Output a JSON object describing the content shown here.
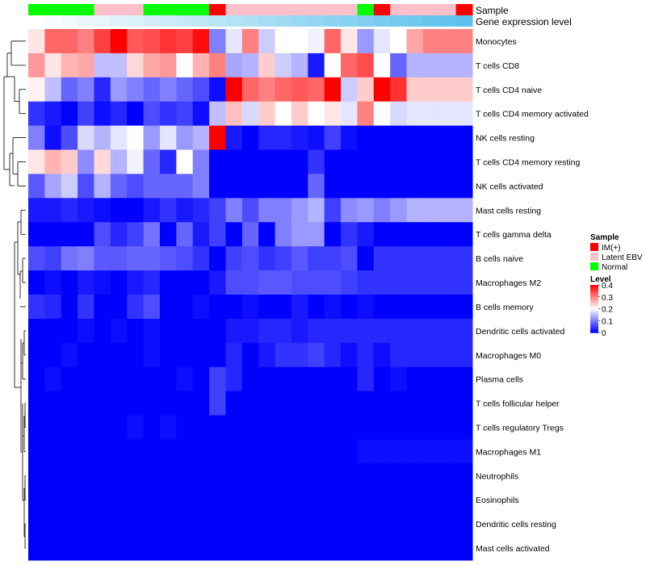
{
  "chart_data": {
    "type": "heatmap",
    "title": "",
    "annotation_tracks": [
      "Sample",
      "Gene expression level"
    ],
    "sample_groups": [
      "Normal",
      "Normal",
      "Normal",
      "Normal",
      "Latent EBV",
      "Latent EBV",
      "Latent EBV",
      "Normal",
      "Normal",
      "Normal",
      "Normal",
      "IM(+)",
      "Latent EBV",
      "Latent EBV",
      "Latent EBV",
      "Latent EBV",
      "Latent EBV",
      "Latent EBV",
      "Latent EBV",
      "Latent EBV",
      "Normal",
      "IM(+)",
      "Latent EBV",
      "Latent EBV",
      "Latent EBV",
      "Latent EBV",
      "IM(+)"
    ],
    "group_colors": {
      "IM(+)": "#ff0000",
      "Latent EBV": "#ffc0cb",
      "Normal": "#00ff00"
    },
    "gene_expression_level": [
      0.0,
      0.04,
      0.08,
      0.12,
      0.15,
      0.19,
      0.23,
      0.27,
      0.31,
      0.35,
      0.38,
      0.42,
      0.46,
      0.5,
      0.54,
      0.58,
      0.62,
      0.65,
      0.69,
      0.73,
      0.77,
      0.81,
      0.85,
      0.88,
      0.92,
      0.96,
      1.0
    ],
    "cell_types": [
      "Monocytes",
      "T cells CD8",
      "T cells CD4 naive",
      "T cells CD4 memory activated",
      "NK cells resting",
      "T cells CD4 memory resting",
      "NK cells activated",
      "Mast cells resting",
      "T cells gamma delta",
      "B cells naive",
      "Macrophages M2",
      "B cells memory",
      "Dendritic cells activated",
      "Macrophages M0",
      "Plasma cells",
      "T cells follicular helper",
      "T cells regulatory  Tregs",
      "Macrophages M1",
      "Neutrophils",
      "Eosinophils",
      "Dendritic cells resting",
      "Mast cells activated"
    ],
    "values": [
      [
        0.22,
        0.32,
        0.32,
        0.3,
        0.35,
        0.4,
        0.33,
        0.34,
        0.36,
        0.35,
        0.39,
        0.1,
        0.18,
        0.3,
        0.16,
        0.2,
        0.2,
        0.19,
        0.32,
        0.22,
        0.12,
        0.18,
        0.2,
        0.27,
        0.3,
        0.3,
        0.3
      ],
      [
        0.28,
        0.22,
        0.26,
        0.27,
        0.15,
        0.15,
        0.23,
        0.27,
        0.28,
        0.2,
        0.26,
        0.3,
        0.13,
        0.14,
        0.24,
        0.16,
        0.14,
        0.02,
        0.2,
        0.32,
        0.34,
        0.2,
        0.08,
        0.14,
        0.14,
        0.14,
        0.14
      ],
      [
        0.21,
        0.15,
        0.08,
        0.1,
        0.03,
        0.12,
        0.1,
        0.08,
        0.1,
        0.08,
        0.06,
        0.01,
        0.4,
        0.32,
        0.3,
        0.32,
        0.33,
        0.32,
        0.4,
        0.16,
        0.24,
        0.4,
        0.36,
        0.24,
        0.24,
        0.24,
        0.24
      ],
      [
        0.04,
        0.02,
        0.0,
        0.05,
        0.01,
        0.03,
        0.0,
        0.06,
        0.04,
        0.05,
        0.01,
        0.15,
        0.25,
        0.17,
        0.24,
        0.2,
        0.24,
        0.2,
        0.22,
        0.18,
        0.3,
        0.2,
        0.17,
        0.18,
        0.18,
        0.18,
        0.18
      ],
      [
        0.1,
        0.01,
        0.06,
        0.17,
        0.14,
        0.18,
        0.2,
        0.12,
        0.18,
        0.12,
        0.14,
        0.4,
        0.02,
        0.0,
        0.03,
        0.03,
        0.02,
        0.01,
        0.05,
        0.01,
        0.0,
        0.0,
        0.0,
        0.0,
        0.0,
        0.0,
        0.0
      ],
      [
        0.22,
        0.26,
        0.24,
        0.11,
        0.23,
        0.14,
        0.19,
        0.08,
        0.03,
        0.2,
        0.1,
        0.0,
        0.0,
        0.0,
        0.0,
        0.0,
        0.0,
        0.04,
        0.0,
        0.0,
        0.0,
        0.0,
        0.0,
        0.0,
        0.0,
        0.0,
        0.0
      ],
      [
        0.07,
        0.13,
        0.16,
        0.06,
        0.14,
        0.08,
        0.06,
        0.08,
        0.08,
        0.08,
        0.1,
        0.0,
        0.0,
        0.0,
        0.0,
        0.0,
        0.0,
        0.08,
        0.0,
        0.0,
        0.0,
        0.0,
        0.0,
        0.0,
        0.0,
        0.0,
        0.0
      ],
      [
        0.02,
        0.02,
        0.03,
        0.02,
        0.01,
        0.0,
        0.0,
        0.02,
        0.04,
        0.02,
        0.03,
        0.05,
        0.1,
        0.06,
        0.1,
        0.1,
        0.12,
        0.14,
        0.05,
        0.11,
        0.12,
        0.1,
        0.12,
        0.14,
        0.14,
        0.14,
        0.14
      ],
      [
        0.0,
        0.0,
        0.0,
        0.0,
        0.06,
        0.03,
        0.05,
        0.09,
        0.0,
        0.08,
        0.02,
        0.05,
        0.0,
        0.08,
        0.0,
        0.1,
        0.12,
        0.12,
        0.0,
        0.04,
        0.02,
        0.0,
        0.0,
        0.0,
        0.0,
        0.0,
        0.0
      ],
      [
        0.06,
        0.05,
        0.09,
        0.1,
        0.07,
        0.07,
        0.08,
        0.08,
        0.07,
        0.06,
        0.04,
        0.0,
        0.05,
        0.06,
        0.04,
        0.05,
        0.07,
        0.05,
        0.05,
        0.06,
        0.0,
        0.04,
        0.04,
        0.04,
        0.04,
        0.04,
        0.04
      ],
      [
        0.0,
        0.01,
        0.0,
        0.02,
        0.01,
        0.0,
        0.02,
        0.03,
        0.0,
        0.0,
        0.0,
        0.02,
        0.06,
        0.06,
        0.07,
        0.07,
        0.06,
        0.06,
        0.06,
        0.05,
        0.04,
        0.04,
        0.04,
        0.04,
        0.04,
        0.04,
        0.04
      ],
      [
        0.04,
        0.03,
        0.0,
        0.04,
        0.0,
        0.0,
        0.04,
        0.06,
        0.0,
        0.0,
        0.01,
        0.0,
        0.0,
        0.01,
        0.0,
        0.0,
        0.02,
        0.0,
        0.01,
        0.0,
        0.01,
        0.0,
        0.0,
        0.0,
        0.0,
        0.0,
        0.0
      ],
      [
        0.0,
        0.0,
        0.0,
        0.01,
        0.0,
        0.01,
        0.0,
        0.01,
        0.0,
        0.0,
        0.0,
        0.0,
        0.02,
        0.02,
        0.03,
        0.03,
        0.02,
        0.03,
        0.03,
        0.03,
        0.03,
        0.03,
        0.03,
        0.03,
        0.03,
        0.03,
        0.03
      ],
      [
        0.0,
        0.0,
        0.01,
        0.0,
        0.0,
        0.0,
        0.0,
        0.01,
        0.0,
        0.0,
        0.0,
        0.0,
        0.03,
        0.0,
        0.02,
        0.04,
        0.04,
        0.05,
        0.03,
        0.01,
        0.03,
        0.01,
        0.03,
        0.03,
        0.03,
        0.03,
        0.03
      ],
      [
        0.0,
        0.01,
        0.0,
        0.0,
        0.0,
        0.0,
        0.0,
        0.0,
        0.0,
        0.01,
        0.0,
        0.05,
        0.03,
        0.0,
        0.0,
        0.0,
        0.0,
        0.0,
        0.0,
        0.0,
        0.03,
        0.0,
        0.01,
        0.0,
        0.0,
        0.0,
        0.0
      ],
      [
        0.0,
        0.0,
        0.0,
        0.0,
        0.0,
        0.0,
        0.0,
        0.0,
        0.0,
        0.0,
        0.0,
        0.05,
        0.0,
        0.0,
        0.0,
        0.0,
        0.0,
        0.0,
        0.0,
        0.0,
        0.0,
        0.0,
        0.0,
        0.0,
        0.0,
        0.0,
        0.0
      ],
      [
        0.0,
        0.0,
        0.0,
        0.0,
        0.0,
        0.0,
        0.01,
        0.0,
        0.01,
        0.0,
        0.0,
        0.0,
        0.0,
        0.0,
        0.0,
        0.0,
        0.0,
        0.0,
        0.0,
        0.0,
        0.0,
        0.0,
        0.0,
        0.0,
        0.0,
        0.0,
        0.0
      ],
      [
        0.0,
        0.0,
        0.0,
        0.0,
        0.0,
        0.0,
        0.0,
        0.0,
        0.0,
        0.0,
        0.0,
        0.0,
        0.0,
        0.0,
        0.0,
        0.0,
        0.0,
        0.0,
        0.0,
        0.0,
        0.01,
        0.01,
        0.01,
        0.01,
        0.01,
        0.01,
        0.01
      ],
      [
        0.0,
        0.0,
        0.0,
        0.0,
        0.0,
        0.0,
        0.0,
        0.0,
        0.0,
        0.0,
        0.0,
        0.0,
        0.0,
        0.0,
        0.0,
        0.0,
        0.0,
        0.0,
        0.0,
        0.0,
        0.0,
        0.0,
        0.0,
        0.0,
        0.0,
        0.0,
        0.0
      ],
      [
        0.0,
        0.0,
        0.0,
        0.0,
        0.0,
        0.0,
        0.0,
        0.0,
        0.0,
        0.0,
        0.0,
        0.0,
        0.0,
        0.0,
        0.0,
        0.0,
        0.0,
        0.0,
        0.0,
        0.0,
        0.0,
        0.0,
        0.0,
        0.0,
        0.0,
        0.0,
        0.0
      ],
      [
        0.0,
        0.0,
        0.0,
        0.0,
        0.0,
        0.0,
        0.0,
        0.0,
        0.0,
        0.0,
        0.0,
        0.0,
        0.0,
        0.0,
        0.0,
        0.0,
        0.0,
        0.0,
        0.0,
        0.0,
        0.0,
        0.0,
        0.0,
        0.0,
        0.0,
        0.0,
        0.0
      ],
      [
        0.0,
        0.0,
        0.0,
        0.0,
        0.0,
        0.0,
        0.0,
        0.0,
        0.0,
        0.0,
        0.0,
        0.0,
        0.0,
        0.0,
        0.0,
        0.0,
        0.0,
        0.0,
        0.0,
        0.0,
        0.0,
        0.0,
        0.0,
        0.0,
        0.0,
        0.0,
        0.0
      ]
    ],
    "color_scale": {
      "range": [
        0,
        0.4
      ],
      "low": "#0000ff",
      "mid": "#ffffff",
      "high": "#ff0000"
    },
    "legend": {
      "sample_title": "Sample",
      "sample_entries": [
        {
          "label": "IM(+)",
          "color": "#ff0000"
        },
        {
          "label": "Latent EBV",
          "color": "#ffc0cb"
        },
        {
          "label": "Normal",
          "color": "#00ff00"
        }
      ],
      "level_title": "Level",
      "level_ticks": [
        {
          "value": 0.4,
          "label": "0.4"
        },
        {
          "value": 0.3,
          "label": "0.3"
        },
        {
          "value": 0.2,
          "label": "0.2"
        },
        {
          "value": 0.1,
          "label": "0.1"
        },
        {
          "value": 0,
          "label": "0"
        }
      ],
      "placement": "right"
    },
    "gene_expression_colors": {
      "low": "#ffffff",
      "high": "#5bc0eb"
    }
  }
}
